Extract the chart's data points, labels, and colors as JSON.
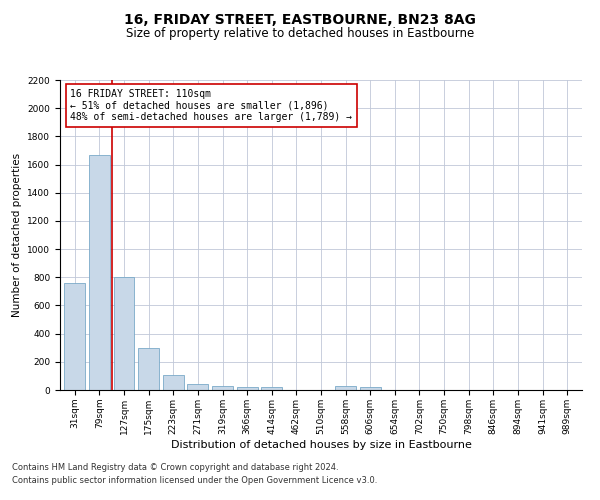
{
  "title1": "16, FRIDAY STREET, EASTBOURNE, BN23 8AG",
  "title2": "Size of property relative to detached houses in Eastbourne",
  "xlabel": "Distribution of detached houses by size in Eastbourne",
  "ylabel": "Number of detached properties",
  "categories": [
    "31sqm",
    "79sqm",
    "127sqm",
    "175sqm",
    "223sqm",
    "271sqm",
    "319sqm",
    "366sqm",
    "414sqm",
    "462sqm",
    "510sqm",
    "558sqm",
    "606sqm",
    "654sqm",
    "702sqm",
    "750sqm",
    "798sqm",
    "846sqm",
    "894sqm",
    "941sqm",
    "989sqm"
  ],
  "values": [
    760,
    1670,
    800,
    300,
    110,
    40,
    30,
    22,
    20,
    0,
    0,
    30,
    20,
    0,
    0,
    0,
    0,
    0,
    0,
    0,
    0
  ],
  "bar_color": "#c8d8e8",
  "bar_edge_color": "#7aaac8",
  "ylim": [
    0,
    2200
  ],
  "yticks": [
    0,
    200,
    400,
    600,
    800,
    1000,
    1200,
    1400,
    1600,
    1800,
    2000,
    2200
  ],
  "vline_x": 1.5,
  "vline_color": "#cc0000",
  "annotation_text": "16 FRIDAY STREET: 110sqm\n← 51% of detached houses are smaller (1,896)\n48% of semi-detached houses are larger (1,789) →",
  "annotation_box_color": "#ffffff",
  "annotation_box_edge": "#cc0000",
  "footer1": "Contains HM Land Registry data © Crown copyright and database right 2024.",
  "footer2": "Contains public sector information licensed under the Open Government Licence v3.0.",
  "bg_color": "#ffffff",
  "grid_color": "#c0c8d8",
  "title1_fontsize": 10,
  "title2_fontsize": 8.5,
  "xlabel_fontsize": 8,
  "ylabel_fontsize": 7.5,
  "tick_fontsize": 6.5,
  "annotation_fontsize": 7,
  "footer_fontsize": 6
}
